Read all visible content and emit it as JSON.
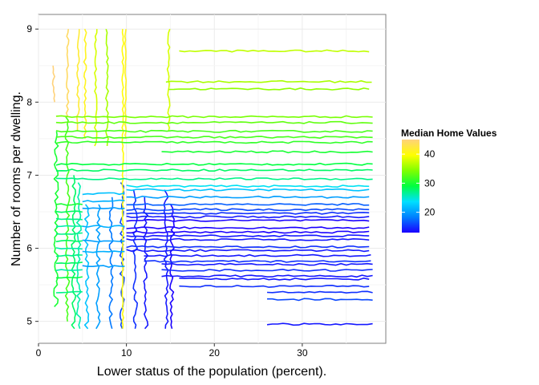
{
  "chart_data": {
    "type": "contour",
    "title": "",
    "xlabel": "Lower status of the population (percent).",
    "ylabel": "Number of rooms per dwelling.",
    "xlim": [
      0,
      39.5
    ],
    "ylim": [
      4.7,
      9.2
    ],
    "x_ticks": [
      0,
      10,
      20,
      30
    ],
    "y_ticks": [
      5,
      6,
      7,
      8,
      9
    ],
    "grid": true,
    "legend": {
      "title": "Median Home Values",
      "position": "right",
      "ticks": [
        20,
        30,
        40
      ],
      "range": [
        13,
        45
      ],
      "colors": [
        "#1a00ff",
        "#0080ff",
        "#00e0ff",
        "#00ff40",
        "#80ff00",
        "#ffff00",
        "#ffd27a"
      ]
    },
    "contours": [
      {
        "value": 13,
        "x": [
          10,
          38
        ],
        "y": [
          6.15,
          6.55
        ]
      },
      {
        "value": 14,
        "x": [
          11,
          38
        ],
        "y": [
          5.6,
          6.85
        ]
      },
      {
        "value": 15,
        "x": [
          11.5,
          38
        ],
        "y": [
          4.95,
          6.85
        ]
      },
      {
        "value": 16,
        "x": [
          10,
          14
        ],
        "y": [
          4.9,
          6.85
        ]
      },
      {
        "value": 18,
        "x": [
          8.5,
          11
        ],
        "y": [
          4.9,
          6.8
        ]
      },
      {
        "value": 20,
        "x": [
          7,
          10
        ],
        "y": [
          4.9,
          6.7
        ]
      },
      {
        "value": 22,
        "x": [
          5.5,
          9
        ],
        "y": [
          4.9,
          6.6
        ]
      },
      {
        "value": 24,
        "x": [
          4.5,
          38
        ],
        "y": [
          5.0,
          7.0
        ]
      },
      {
        "value": 26,
        "x": [
          4,
          38
        ],
        "y": [
          5.1,
          7.1
        ]
      },
      {
        "value": 28,
        "x": [
          3.5,
          38
        ],
        "y": [
          5.2,
          7.4
        ]
      },
      {
        "value": 30,
        "x": [
          2,
          38
        ],
        "y": [
          5.3,
          7.6
        ]
      },
      {
        "value": 32,
        "x": [
          3.5,
          38
        ],
        "y": [
          7.0,
          7.8
        ]
      },
      {
        "value": 34,
        "x": [
          4.5,
          15
        ],
        "y": [
          7.2,
          8.2
        ]
      },
      {
        "value": 36,
        "x": [
          7,
          38
        ],
        "y": [
          7.4,
          8.3
        ]
      },
      {
        "value": 38,
        "x": [
          9.5,
          38
        ],
        "y": [
          7.5,
          8.7
        ]
      },
      {
        "value": 40,
        "x": [
          8.5,
          10
        ],
        "y": [
          4.9,
          9.0
        ]
      },
      {
        "value": 42,
        "x": [
          5,
          7
        ],
        "y": [
          7.5,
          9.0
        ]
      },
      {
        "value": 44,
        "x": [
          3,
          5
        ],
        "y": [
          7.8,
          9.0
        ]
      },
      {
        "value": 45,
        "x": [
          2,
          4
        ],
        "y": [
          8.0,
          8.6
        ]
      }
    ]
  }
}
